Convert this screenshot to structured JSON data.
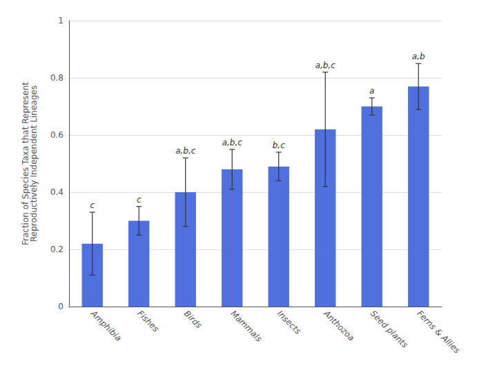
{
  "chart_data": {
    "type": "bar",
    "categories": [
      "Amphibia",
      "Fishes",
      "Birds",
      "Mammals",
      "Insects",
      "Anthozoa",
      "Seed plants",
      "Ferns & Allies"
    ],
    "values": [
      0.22,
      0.3,
      0.4,
      0.48,
      0.49,
      0.62,
      0.7,
      0.77
    ],
    "errors": [
      0.11,
      0.05,
      0.12,
      0.07,
      0.05,
      0.2,
      0.03,
      0.08
    ],
    "annotations": [
      "c",
      "c",
      "a,b,c",
      "a,b,c",
      "b,c",
      "a,b,c",
      "a",
      "a,b"
    ],
    "ylabel": "Fraction of Species Taxa that Represent\nReproductively Independent Lineages",
    "ylim": [
      0,
      1.0
    ],
    "yticks": [
      0,
      0.2,
      0.4,
      0.6,
      0.8,
      1
    ],
    "grid": true
  }
}
